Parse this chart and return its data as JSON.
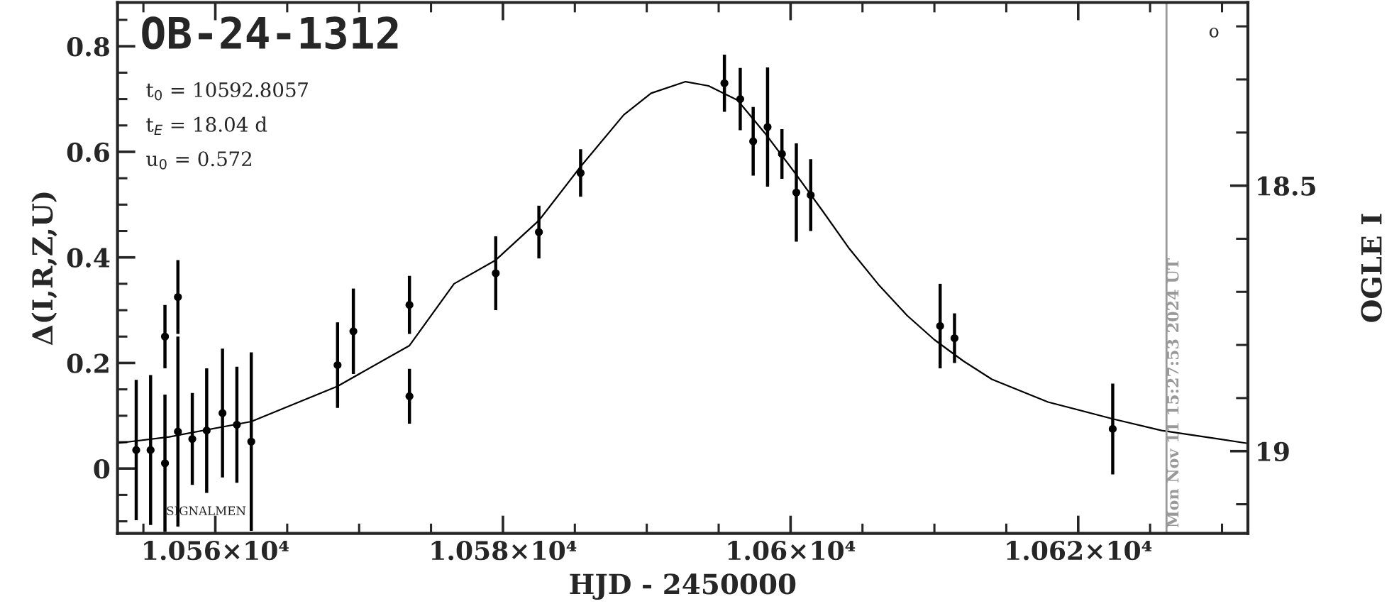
{
  "chart_data": {
    "type": "scatter",
    "title": "OB-24-1312",
    "xlabel": "HJD - 2450000",
    "ylabel": "Δ(I,R,Z,U)",
    "y2label": "OGLE I",
    "annotations": [
      "t$_{0}$ = 10592.8057",
      "t$_{E}$ = 18.04 d",
      "u$_{0}$ = 0.572",
      "SIGNALMEN",
      "o",
      {
        "text": "Mon Nov 11 15:27:53 2024 UT",
        "x": 10626.14,
        "y": -0.123
      }
    ],
    "xlim": [
      10553.2,
      10631.8
    ],
    "xticks": [
      {
        "value": 10555,
        "label": null
      },
      {
        "value": 10560,
        "label": "1.056×10⁴"
      },
      {
        "value": 10565,
        "label": null
      },
      {
        "value": 10570,
        "label": null
      },
      {
        "value": 10575,
        "label": null
      },
      {
        "value": 10580,
        "label": "1.058×10⁴"
      },
      {
        "value": 10585,
        "label": null
      },
      {
        "value": 10590,
        "label": null
      },
      {
        "value": 10595,
        "label": null
      },
      {
        "value": 10600,
        "label": "1.06×10⁴"
      },
      {
        "value": 10605,
        "label": null
      },
      {
        "value": 10610,
        "label": null
      },
      {
        "value": 10615,
        "label": null
      },
      {
        "value": 10620,
        "label": "1.062×10⁴"
      },
      {
        "value": 10625,
        "label": null
      },
      {
        "value": 10630,
        "label": null
      }
    ],
    "ylim": [
      -0.123,
      0.883
    ],
    "yticks": [
      {
        "value": -0.1,
        "label": null
      },
      {
        "value": -0.05,
        "label": null
      },
      0,
      {
        "value": 0.05,
        "label": null
      },
      {
        "value": 0.1,
        "label": null
      },
      {
        "value": 0.15,
        "label": null
      },
      0.2,
      {
        "value": 0.25,
        "label": null
      },
      {
        "value": 0.3,
        "label": null
      },
      {
        "value": 0.35,
        "label": null
      },
      0.4,
      {
        "value": 0.45,
        "label": null
      },
      {
        "value": 0.5,
        "label": null
      },
      {
        "value": 0.55,
        "label": null
      },
      0.6,
      {
        "value": 0.65,
        "label": null
      },
      {
        "value": 0.7,
        "label": null
      },
      {
        "value": 0.75,
        "label": null
      },
      0.8,
      {
        "value": 0.85,
        "label": null
      }
    ],
    "y2lim": [
      19.155,
      18.155
    ],
    "y2ticks": [
      {
        "value": 18.2,
        "label": null
      },
      {
        "value": 18.3,
        "label": null
      },
      {
        "value": 18.4,
        "label": null
      },
      18.5,
      {
        "value": 18.6,
        "label": null
      },
      {
        "value": 18.7,
        "label": null
      },
      {
        "value": 18.8,
        "label": null
      },
      {
        "value": 18.9,
        "label": null
      },
      19,
      {
        "value": 19.1,
        "label": null
      }
    ],
    "ref_lines": [
      {
        "axis": "x",
        "value": 10626.14,
        "color": "#999999"
      }
    ],
    "series": [
      {
        "color": "#000000",
        "marker": "circle",
        "x": [
          10554.5,
          10555.5,
          10556.5,
          10556.5,
          10557.4,
          10557.4,
          10558.4,
          10559.4,
          10560.5,
          10561.5,
          10562.5,
          10568.5,
          10569.6,
          10573.5,
          10573.5,
          10579.5,
          10582.5,
          10585.4,
          10595.4,
          10596.5,
          10597.4,
          10598.4,
          10599.4,
          10600.4,
          10601.4,
          10610.4,
          10611.4,
          10622.4
        ],
        "values": [
          0.035,
          0.035,
          0.01,
          0.25,
          0.325,
          0.07,
          0.056,
          0.072,
          0.105,
          0.083,
          0.051,
          0.196,
          0.26,
          0.31,
          0.137,
          0.37,
          0.448,
          0.56,
          0.73,
          0.7,
          0.62,
          0.647,
          0.596,
          0.523,
          0.518,
          0.27,
          0.247,
          0.075
        ],
        "errors": [
          0.133,
          0.142,
          0.13,
          0.06,
          0.07,
          0.18,
          0.087,
          0.118,
          0.122,
          0.11,
          0.169,
          0.081,
          0.081,
          0.055,
          0.052,
          0.07,
          0.05,
          0.045,
          0.054,
          0.059,
          0.065,
          0.113,
          0.047,
          0.093,
          0.068,
          0.08,
          0.047,
          0.086
        ]
      },
      {
        "type": "line",
        "color": "#000000",
        "x": [
          10553.2,
          10556.8,
          10562.5,
          10568.5,
          10573.5,
          10576.6,
          10579.5,
          10582.5,
          10585.4,
          10588.4,
          10590.3,
          10592.7,
          10594.3,
          10596.3,
          10598.2,
          10600.2,
          10602.2,
          10604.1,
          10606.1,
          10608.1,
          10610.0,
          10612.0,
          10614.0,
          10617.9,
          10622.4,
          10625.8,
          10629.8,
          10631.7
        ],
        "values": [
          0.048,
          0.06,
          0.089,
          0.156,
          0.233,
          0.35,
          0.395,
          0.47,
          0.572,
          0.67,
          0.711,
          0.733,
          0.725,
          0.698,
          0.636,
          0.564,
          0.489,
          0.416,
          0.349,
          0.29,
          0.244,
          0.204,
          0.169,
          0.126,
          0.094,
          0.072,
          0.056,
          0.048
        ]
      }
    ]
  }
}
